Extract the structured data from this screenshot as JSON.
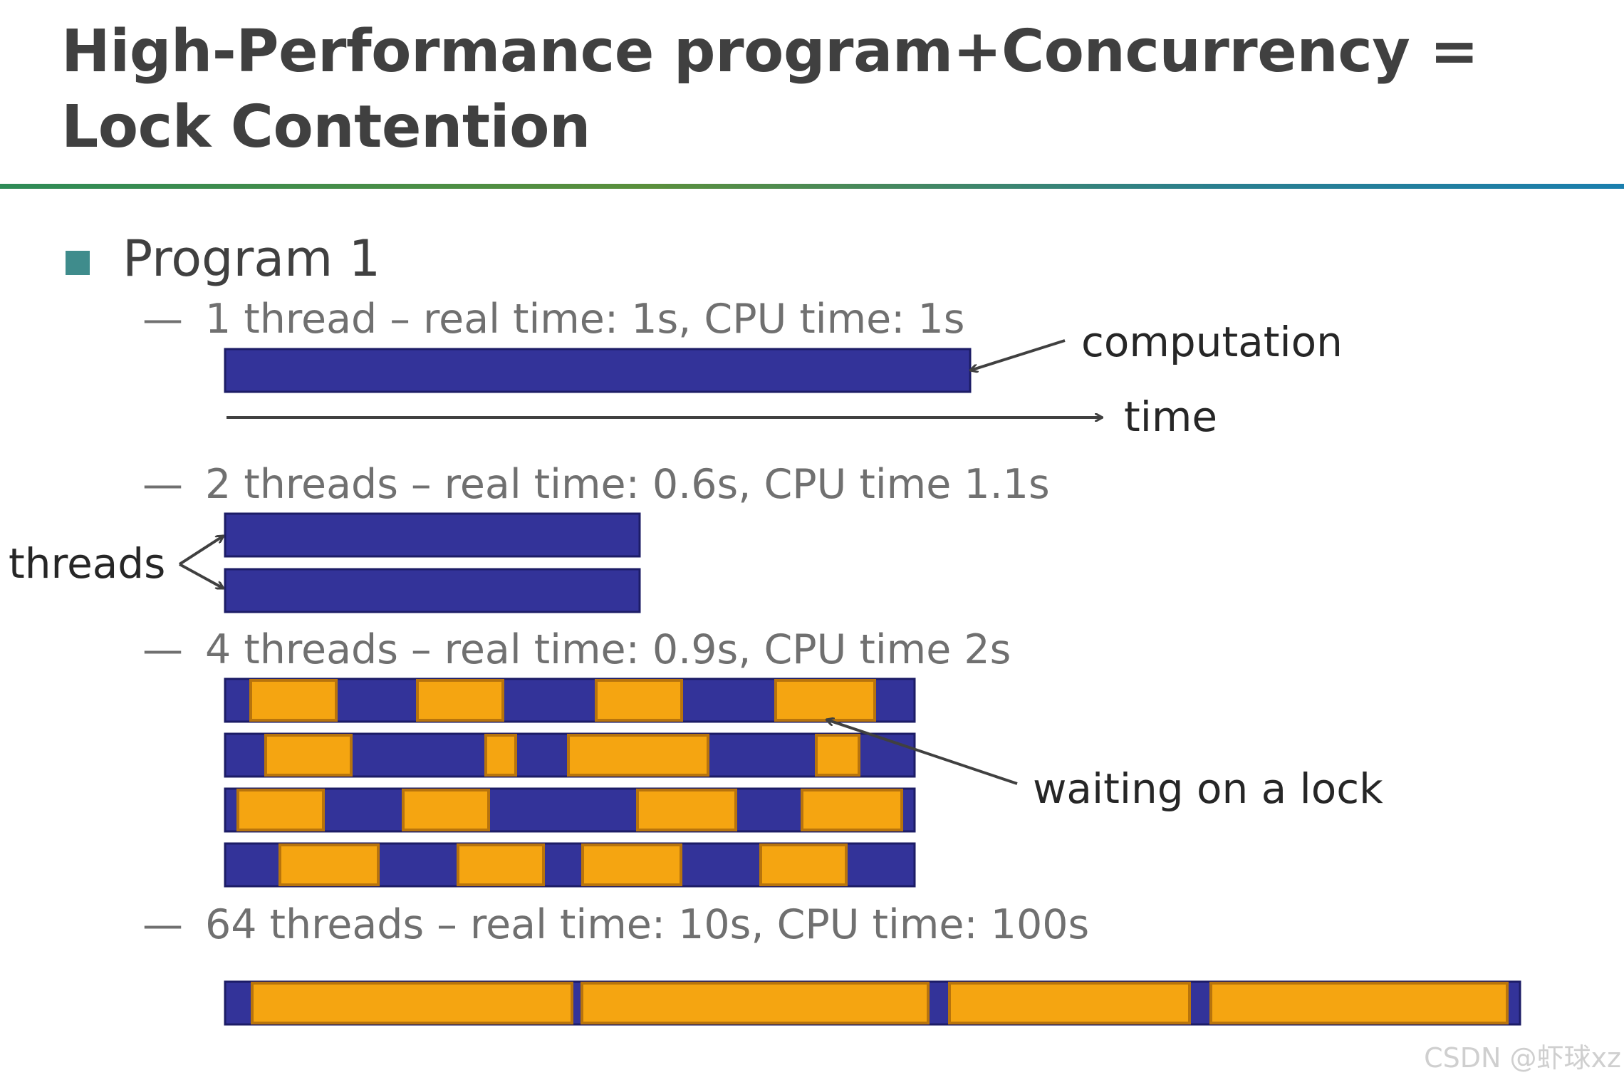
{
  "title": {
    "line1": "High-Performance program+Concurrency =",
    "line2": "Lock Contention"
  },
  "bullet": {
    "heading": "Program 1",
    "items": [
      {
        "dash": "—",
        "text": "1 thread – real time: 1s, CPU time: 1s"
      },
      {
        "dash": "—",
        "text": "2 threads – real time: 0.6s, CPU time 1.1s"
      },
      {
        "dash": "—",
        "text": "4 threads – real time: 0.9s, CPU time 2s"
      },
      {
        "dash": "—",
        "text": "64 threads – real time: 10s, CPU time: 100s"
      }
    ]
  },
  "labels": {
    "computation": "computation",
    "time": "time",
    "threads": "threads",
    "waiting": "waiting on a lock"
  },
  "colors": {
    "computation": "#333399",
    "waiting": "#f5a511",
    "waiting_border": "#b8740c",
    "arrow": "#404040"
  },
  "watermark": "CSDN @虾球xz"
}
